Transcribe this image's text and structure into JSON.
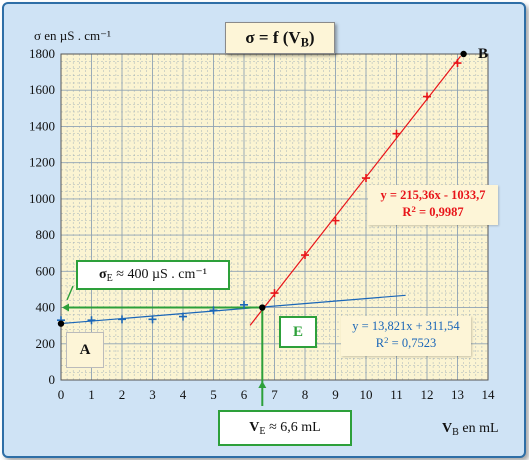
{
  "chart_data": {
    "type": "scatter",
    "title": "σ = f (VB)",
    "title_main": "σ = f (V",
    "title_sub": "B",
    "title_end": ")",
    "xlabel_main": "V",
    "xlabel_sub": "B",
    "xlabel_rest": " en mL",
    "ylabel": "σ en µS . cm⁻¹",
    "xlim": [
      0,
      14
    ],
    "ylim": [
      0,
      1800
    ],
    "x_ticks": [
      "0",
      "1",
      "2",
      "3",
      "4",
      "5",
      "6",
      "7",
      "8",
      "9",
      "10",
      "11",
      "12",
      "13",
      "14"
    ],
    "y_ticks": [
      "0",
      "200",
      "400",
      "600",
      "800",
      "1000",
      "1200",
      "1400",
      "1600",
      "1800"
    ],
    "grid": true,
    "series": [
      {
        "color": "#1a66b8",
        "points": [
          [
            0,
            330
          ],
          [
            1,
            330
          ],
          [
            2,
            335
          ],
          [
            3,
            335
          ],
          [
            4,
            350
          ],
          [
            5,
            385
          ],
          [
            6,
            415
          ]
        ],
        "fit": {
          "slope": 13.821,
          "intercept": 311.54,
          "x_range": [
            0,
            11.3
          ]
        },
        "equation": "y = 13,821x + 311,54",
        "r2_label": "R",
        "r2_value": " = 0,7523"
      },
      {
        "color": "#e8151a",
        "points": [
          [
            7,
            480
          ],
          [
            8,
            690
          ],
          [
            9,
            880
          ],
          [
            10,
            1115
          ],
          [
            11,
            1360
          ],
          [
            12,
            1565
          ],
          [
            13,
            1750
          ]
        ],
        "fit": {
          "slope": 215.36,
          "intercept": -1033.7,
          "x_range": [
            6.2,
            13.1
          ]
        },
        "equation": "y = 215,36x - 1033,7",
        "r2_label": "R",
        "r2_value": " = 0,9987"
      }
    ],
    "markers": [
      {
        "name": "A",
        "x": 0,
        "y": 311
      },
      {
        "name": "B",
        "x": 13.2,
        "y": 1800
      },
      {
        "name": "E",
        "x": 6.6,
        "y": 400
      }
    ],
    "equivalence": {
      "ve": 6.6,
      "sigma_e": 400,
      "ve_label_main": "V",
      "ve_label_sub": "E",
      "ve_label_rest": " ≈ 6,6 mL",
      "sigma_label_main": "σ",
      "sigma_label_sub": "E",
      "sigma_label_rest": " ≈ 400 µS . cm⁻¹"
    },
    "point_a_label": "A",
    "point_b_label": "B",
    "point_e_label": "E"
  },
  "colors": {
    "background": "#cfe3f5",
    "plot_area": "#fbf4d2",
    "grid": "#8ea2b4",
    "green": "#2da03a"
  }
}
